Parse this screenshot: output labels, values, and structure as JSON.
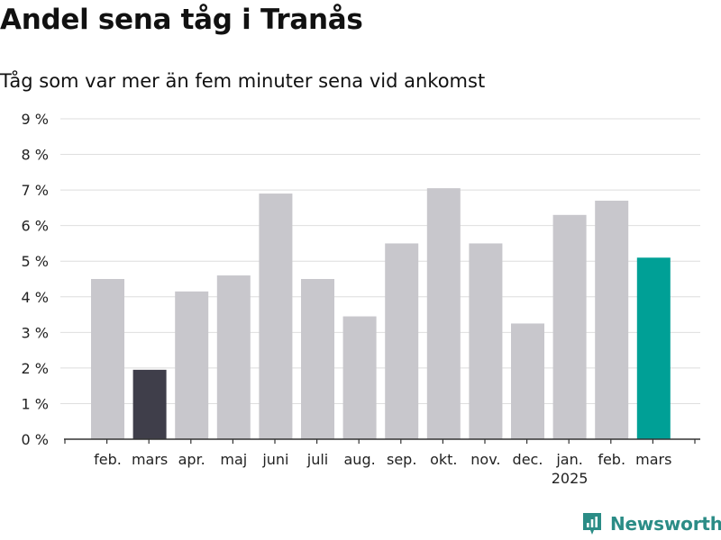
{
  "header": {
    "title": "Andel sena tåg i Tranås",
    "subtitle": "Tåg som var mer än fem minuter sena vid ankomst"
  },
  "brand": {
    "name": "Newsworthy",
    "icon": "newsworthy-logo-icon",
    "color": "#2b8c86"
  },
  "colors": {
    "default": "#c8c7cc",
    "previous_year_same_month": "#3f3e4a",
    "current": "#00a096"
  },
  "chart_data": {
    "type": "bar",
    "categories": [
      "feb.",
      "mars",
      "apr.",
      "maj",
      "juni",
      "juli",
      "aug.",
      "sep.",
      "okt.",
      "nov.",
      "dec.",
      "jan.",
      "feb.",
      "mars"
    ],
    "year_labels": [
      "",
      "",
      "",
      "",
      "",
      "",
      "",
      "",
      "",
      "",
      "",
      "2025",
      "",
      ""
    ],
    "values": [
      4.5,
      1.95,
      4.15,
      4.6,
      6.9,
      4.5,
      3.45,
      5.5,
      7.05,
      5.5,
      3.25,
      6.3,
      6.7,
      5.1
    ],
    "bar_colors": [
      "default",
      "previous_year_same_month",
      "default",
      "default",
      "default",
      "default",
      "default",
      "default",
      "default",
      "default",
      "default",
      "default",
      "default",
      "current"
    ],
    "y_ticks": [
      0,
      1,
      2,
      3,
      4,
      5,
      6,
      7,
      8,
      9
    ],
    "y_tick_labels": [
      "0 %",
      "1 %",
      "2 %",
      "3 %",
      "4 %",
      "5 %",
      "6 %",
      "7 %",
      "8 %",
      "9 %"
    ],
    "ylim": [
      0,
      9
    ],
    "grid": true,
    "legend": "none"
  }
}
